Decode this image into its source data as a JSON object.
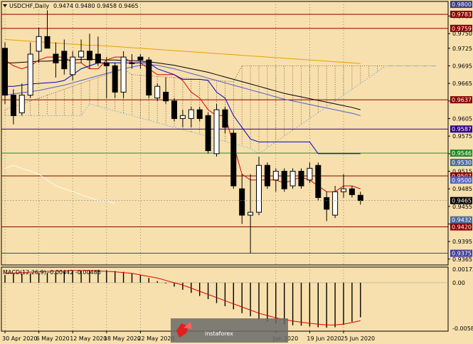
{
  "header": {
    "symbol": "USDCHF,Daily",
    "ohlc": "0.9474 0.9480 0.9458 0.9465"
  },
  "macd": {
    "label": "MACD(12,26,9) -0.00442 -0.00486",
    "levels": [
      "0.00172",
      "0.00",
      "-0.00585"
    ]
  },
  "watermark": {
    "brand": "instaforex"
  },
  "colors": {
    "background": "#f7e0ad",
    "bull": "#ffffff",
    "bear": "#000000",
    "tenkan": "#e00000",
    "kijun": "#0000cc",
    "ma_slow": "#e8a000",
    "ma_fast": "#000000",
    "ma_blue": "#5060d0",
    "level_red": "#8b0000",
    "level_purple": "#30008a",
    "level_green": "#2a8a2a",
    "level_blue": "#4040a0"
  },
  "chart_data": {
    "type": "candlestick",
    "symbol": "USDCHF",
    "timeframe": "Daily",
    "y_range": [
      0.9355,
      0.9805
    ],
    "price_ticks": [
      "0.9780",
      "0.9750",
      "0.9725",
      "0.9695",
      "0.9665",
      "0.9635",
      "0.9605",
      "0.9575",
      "0.9545",
      "0.9515",
      "0.9485",
      "0.9455",
      "0.9425",
      "0.9395",
      "0.9365"
    ],
    "date_labels": [
      {
        "text": "30 Apr 2020",
        "index": 0
      },
      {
        "text": "6 May 2020",
        "index": 4
      },
      {
        "text": "12 May 2020",
        "index": 8
      },
      {
        "text": "18 May 2020",
        "index": 12
      },
      {
        "text": "22 May 2020",
        "index": 16
      },
      {
        "text": "Jun 2020",
        "index": 32
      },
      {
        "text": "19 Jun 2020",
        "index": 36
      },
      {
        "text": "25 Jun 2020",
        "index": 40
      }
    ],
    "level_tags": [
      {
        "text": "0.9800",
        "value": 0.98,
        "color": "#3a3a80"
      },
      {
        "text": "0.9783",
        "value": 0.9783,
        "color": "#8b0000"
      },
      {
        "text": "0.9759",
        "value": 0.9759,
        "color": "#8b0000"
      },
      {
        "text": "0.9637",
        "value": 0.9637,
        "color": "#8b0000"
      },
      {
        "text": "0.9587",
        "value": 0.9587,
        "color": "#30008a"
      },
      {
        "text": "0.9546",
        "value": 0.9546,
        "color": "#2a8a2a"
      },
      {
        "text": "0.9530",
        "value": 0.953,
        "color": "#4a6a9a"
      },
      {
        "text": "0.9507",
        "value": 0.9507,
        "color": "#8b0000"
      },
      {
        "text": "0.9500",
        "value": 0.95,
        "color": "#5060c0"
      },
      {
        "text": "0.9465",
        "value": 0.9465,
        "color": "#000000"
      },
      {
        "text": "0.9432",
        "value": 0.9432,
        "color": "#4a6a9a"
      },
      {
        "text": "0.9420",
        "value": 0.942,
        "color": "#8b0000"
      },
      {
        "text": "0.9375",
        "value": 0.9375,
        "color": "#4040a0"
      }
    ],
    "horizontal_levels": [
      {
        "value": 0.9783,
        "color": "#8b0000"
      },
      {
        "value": 0.9759,
        "color": "#8b0000"
      },
      {
        "value": 0.9637,
        "color": "#8b0000"
      },
      {
        "value": 0.9587,
        "color": "#30008a"
      },
      {
        "value": 0.9546,
        "color": "#2a8a2a"
      },
      {
        "value": 0.9507,
        "color": "#8b0000"
      },
      {
        "value": 0.942,
        "color": "#8b0000"
      },
      {
        "value": 0.9375,
        "color": "#4040a0"
      }
    ],
    "candles": [
      {
        "o": 0.9725,
        "h": 0.9735,
        "l": 0.963,
        "c": 0.9645
      },
      {
        "o": 0.9645,
        "h": 0.9655,
        "l": 0.9595,
        "c": 0.961
      },
      {
        "o": 0.9615,
        "h": 0.9665,
        "l": 0.961,
        "c": 0.9645
      },
      {
        "o": 0.9645,
        "h": 0.9735,
        "l": 0.964,
        "c": 0.9715
      },
      {
        "o": 0.972,
        "h": 0.976,
        "l": 0.97,
        "c": 0.9745
      },
      {
        "o": 0.9745,
        "h": 0.979,
        "l": 0.9725,
        "c": 0.9725
      },
      {
        "o": 0.9715,
        "h": 0.9735,
        "l": 0.9675,
        "c": 0.97
      },
      {
        "o": 0.972,
        "h": 0.974,
        "l": 0.968,
        "c": 0.969
      },
      {
        "o": 0.968,
        "h": 0.972,
        "l": 0.967,
        "c": 0.971
      },
      {
        "o": 0.971,
        "h": 0.974,
        "l": 0.97,
        "c": 0.972
      },
      {
        "o": 0.972,
        "h": 0.975,
        "l": 0.969,
        "c": 0.9705
      },
      {
        "o": 0.9715,
        "h": 0.9745,
        "l": 0.9695,
        "c": 0.97
      },
      {
        "o": 0.97,
        "h": 0.971,
        "l": 0.964,
        "c": 0.9695
      },
      {
        "o": 0.9695,
        "h": 0.97,
        "l": 0.964,
        "c": 0.965
      },
      {
        "o": 0.965,
        "h": 0.972,
        "l": 0.964,
        "c": 0.971
      },
      {
        "o": 0.97,
        "h": 0.9715,
        "l": 0.969,
        "c": 0.97
      },
      {
        "o": 0.971,
        "h": 0.9715,
        "l": 0.969,
        "c": 0.9705
      },
      {
        "o": 0.9705,
        "h": 0.971,
        "l": 0.964,
        "c": 0.9645
      },
      {
        "o": 0.964,
        "h": 0.9665,
        "l": 0.9635,
        "c": 0.966
      },
      {
        "o": 0.965,
        "h": 0.9675,
        "l": 0.963,
        "c": 0.9635
      },
      {
        "o": 0.9635,
        "h": 0.964,
        "l": 0.96,
        "c": 0.9605
      },
      {
        "o": 0.9605,
        "h": 0.962,
        "l": 0.959,
        "c": 0.961
      },
      {
        "o": 0.9605,
        "h": 0.9625,
        "l": 0.959,
        "c": 0.962
      },
      {
        "o": 0.962,
        "h": 0.9625,
        "l": 0.96,
        "c": 0.9605
      },
      {
        "o": 0.961,
        "h": 0.9615,
        "l": 0.9545,
        "c": 0.955
      },
      {
        "o": 0.9545,
        "h": 0.963,
        "l": 0.954,
        "c": 0.962
      },
      {
        "o": 0.962,
        "h": 0.9625,
        "l": 0.958,
        "c": 0.959
      },
      {
        "o": 0.958,
        "h": 0.9585,
        "l": 0.9485,
        "c": 0.949
      },
      {
        "o": 0.9485,
        "h": 0.951,
        "l": 0.9425,
        "c": 0.944
      },
      {
        "o": 0.944,
        "h": 0.951,
        "l": 0.9375,
        "c": 0.9445
      },
      {
        "o": 0.9445,
        "h": 0.954,
        "l": 0.944,
        "c": 0.9525
      },
      {
        "o": 0.9525,
        "h": 0.953,
        "l": 0.9485,
        "c": 0.949
      },
      {
        "o": 0.95,
        "h": 0.952,
        "l": 0.948,
        "c": 0.9515
      },
      {
        "o": 0.9515,
        "h": 0.952,
        "l": 0.948,
        "c": 0.9485
      },
      {
        "o": 0.949,
        "h": 0.952,
        "l": 0.9485,
        "c": 0.9515
      },
      {
        "o": 0.9515,
        "h": 0.952,
        "l": 0.9485,
        "c": 0.949
      },
      {
        "o": 0.95,
        "h": 0.953,
        "l": 0.9495,
        "c": 0.952
      },
      {
        "o": 0.9525,
        "h": 0.953,
        "l": 0.9465,
        "c": 0.947
      },
      {
        "o": 0.947,
        "h": 0.948,
        "l": 0.943,
        "c": 0.945
      },
      {
        "o": 0.944,
        "h": 0.949,
        "l": 0.9435,
        "c": 0.948
      },
      {
        "o": 0.948,
        "h": 0.951,
        "l": 0.947,
        "c": 0.9485
      },
      {
        "o": 0.9485,
        "h": 0.949,
        "l": 0.947,
        "c": 0.9475
      },
      {
        "o": 0.9474,
        "h": 0.948,
        "l": 0.9458,
        "c": 0.9465
      }
    ],
    "macd_histogram": [
      0.001,
      0.0011,
      0.00115,
      0.0012,
      0.00125,
      0.0013,
      0.00135,
      0.0014,
      0.0015,
      0.00155,
      0.0016,
      0.00165,
      0.0016,
      0.0015,
      0.0014,
      0.0012,
      0.001,
      0.0006,
      0.0002,
      -0.0001,
      -0.0005,
      -0.0009,
      -0.0013,
      -0.0017,
      -0.0021,
      -0.0026,
      -0.003,
      -0.0034,
      -0.0039,
      -0.0043,
      -0.0047,
      -0.005,
      -0.0052,
      -0.0053,
      -0.00545,
      -0.0055,
      -0.0056,
      -0.0057,
      -0.00575,
      -0.0057,
      -0.0054,
      -0.005,
      -0.00442
    ],
    "macd_signal": [
      0.0012,
      0.00125,
      0.0013,
      0.00135,
      0.0014,
      0.00145,
      0.0015,
      0.0015,
      0.00155,
      0.00155,
      0.00155,
      0.0015,
      0.00145,
      0.0014,
      0.0013,
      0.0012,
      0.001,
      0.0008,
      0.0006,
      0.0003,
      0.0,
      -0.0003,
      -0.0007,
      -0.0011,
      -0.0015,
      -0.0019,
      -0.0023,
      -0.0027,
      -0.0031,
      -0.0035,
      -0.0039,
      -0.0042,
      -0.0045,
      -0.0047,
      -0.0049,
      -0.00505,
      -0.0052,
      -0.0053,
      -0.0054,
      -0.0054,
      -0.0053,
      -0.0051,
      -0.00486
    ],
    "macd_range": [
      -0.0062,
      0.002
    ],
    "ichimoku": {
      "tenkan": [
        0.9705,
        0.9695,
        0.969,
        0.9695,
        0.9705,
        0.971,
        0.971,
        0.971,
        0.97,
        0.97,
        0.969,
        0.969,
        0.9705,
        0.971,
        0.971,
        0.97,
        0.97,
        0.969,
        0.968,
        0.968,
        0.968,
        0.967,
        0.965,
        0.964,
        0.962,
        0.961,
        0.961,
        0.956,
        0.951,
        0.95,
        0.95,
        0.95,
        0.95,
        0.9495,
        0.95,
        0.9505,
        0.95,
        0.949,
        0.948,
        0.948,
        0.949,
        0.949,
        0.9485
      ],
      "kijun": [
        0.966,
        0.966,
        0.9662,
        0.9664,
        0.9665,
        0.9666,
        0.9667,
        0.967,
        0.968,
        0.969,
        0.9695,
        0.97,
        0.97,
        0.97,
        0.97,
        0.97,
        0.97,
        0.97,
        0.969,
        0.9685,
        0.968,
        0.9672,
        0.9672,
        0.9672,
        0.967,
        0.965,
        0.964,
        0.961,
        0.959,
        0.957,
        0.9565,
        0.9565,
        0.9565,
        0.9565,
        0.9565,
        0.9565,
        0.9565,
        0.9545,
        0.9545,
        0.9545,
        0.9545,
        0.9545,
        0.9545
      ],
      "chikou": [
        0.952,
        0.9525,
        0.952,
        0.9515,
        0.951,
        0.95,
        0.949,
        0.9485,
        0.948,
        0.9475,
        0.947,
        0.9465,
        0.9465,
        0.946
      ]
    },
    "ma_slow": [
      0.974,
      0.9739,
      0.9738,
      0.9737,
      0.9736,
      0.9735,
      0.9734,
      0.9733,
      0.9732,
      0.9731,
      0.973,
      0.973,
      0.9729,
      0.9728,
      0.9727,
      0.9726,
      0.9725,
      0.9724,
      0.9723,
      0.9722,
      0.9721,
      0.972,
      0.9719,
      0.9718,
      0.9717,
      0.9716,
      0.9715,
      0.9714,
      0.9713,
      0.9712,
      0.9711,
      0.971,
      0.9709,
      0.9708,
      0.9707,
      0.9706,
      0.9705,
      0.9704,
      0.9703,
      0.9702,
      0.9701,
      0.97,
      0.9699
    ],
    "ma_fast": [
      0.97,
      0.97,
      0.9701,
      0.9702,
      0.9703,
      0.9703,
      0.9704,
      0.9705,
      0.9705,
      0.9706,
      0.9706,
      0.9706,
      0.9705,
      0.9705,
      0.9704,
      0.9704,
      0.9703,
      0.9702,
      0.97,
      0.9698,
      0.9696,
      0.9693,
      0.969,
      0.9687,
      0.9684,
      0.968,
      0.9676,
      0.9672,
      0.9668,
      0.9664,
      0.966,
      0.9656,
      0.9652,
      0.9648,
      0.9645,
      0.9642,
      0.9639,
      0.9636,
      0.9633,
      0.963,
      0.9627,
      0.9624,
      0.962
    ],
    "ma_blue": [
      0.9645,
      0.9647,
      0.9649,
      0.9651,
      0.9653,
      0.9656,
      0.9659,
      0.9662,
      0.9666,
      0.967,
      0.9674,
      0.9678,
      0.9682,
      0.9686,
      0.969,
      0.9693,
      0.9696,
      0.9697,
      0.9696,
      0.9693,
      0.969,
      0.9686,
      0.9682,
      0.9678,
      0.9674,
      0.967,
      0.9666,
      0.9662,
      0.9658,
      0.9654,
      0.965,
      0.9646,
      0.9642,
      0.9638,
      0.9635,
      0.9632,
      0.9629,
      0.9626,
      0.9623,
      0.962,
      0.9617,
      0.9614,
      0.961
    ]
  }
}
